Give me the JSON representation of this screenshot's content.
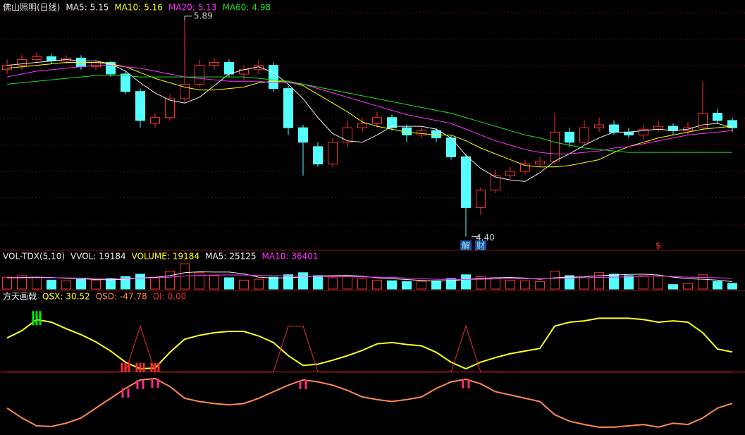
{
  "chart_data": [
    {
      "type": "candlestick",
      "title": "佛山照明(日线)",
      "open": [
        5.55,
        5.58,
        5.62,
        5.64,
        5.61,
        5.63,
        5.57,
        5.6,
        5.52,
        5.4,
        5.18,
        5.22,
        5.35,
        5.45,
        5.58,
        5.6,
        5.52,
        5.55,
        5.58,
        5.42,
        5.15,
        5.02,
        4.9,
        5.05,
        5.15,
        5.18,
        5.22,
        5.15,
        5.1,
        5.13,
        5.08,
        4.95,
        4.6,
        4.72,
        4.82,
        4.85,
        4.9,
        4.92,
        5.12,
        5.05,
        5.15,
        5.17,
        5.12,
        5.1,
        5.14,
        5.16,
        5.13,
        5.15,
        5.25,
        5.2
      ],
      "high": [
        5.62,
        5.65,
        5.67,
        5.66,
        5.65,
        5.65,
        5.62,
        5.61,
        5.54,
        5.42,
        5.25,
        5.38,
        5.89,
        5.62,
        5.63,
        5.62,
        5.58,
        5.62,
        5.6,
        5.44,
        5.17,
        5.05,
        5.08,
        5.2,
        5.22,
        5.26,
        5.24,
        5.17,
        5.16,
        5.15,
        5.1,
        4.97,
        4.74,
        4.86,
        4.88,
        4.93,
        4.95,
        5.25,
        5.15,
        5.2,
        5.22,
        5.2,
        5.15,
        5.17,
        5.2,
        5.18,
        5.19,
        5.47,
        5.28,
        5.22
      ],
      "low": [
        5.52,
        5.55,
        5.6,
        5.59,
        5.59,
        5.55,
        5.55,
        5.5,
        5.38,
        5.15,
        5.15,
        5.2,
        5.33,
        5.43,
        5.55,
        5.5,
        5.48,
        5.52,
        5.4,
        5.1,
        4.82,
        4.88,
        4.88,
        5.02,
        5.12,
        5.15,
        5.13,
        5.05,
        5.08,
        5.05,
        4.93,
        4.4,
        4.55,
        4.7,
        4.8,
        4.83,
        4.88,
        4.9,
        5.02,
        5.03,
        5.12,
        5.1,
        5.08,
        5.07,
        5.12,
        5.1,
        5.1,
        5.13,
        5.18,
        5.12
      ],
      "close": [
        5.58,
        5.62,
        5.64,
        5.61,
        5.63,
        5.57,
        5.6,
        5.52,
        5.4,
        5.2,
        5.22,
        5.35,
        5.45,
        5.58,
        5.6,
        5.52,
        5.55,
        5.58,
        5.42,
        5.15,
        5.05,
        4.9,
        5.05,
        5.15,
        5.18,
        5.22,
        5.15,
        5.1,
        5.13,
        5.08,
        4.95,
        4.6,
        4.72,
        4.82,
        4.85,
        4.9,
        4.92,
        5.12,
        5.05,
        5.15,
        5.17,
        5.12,
        5.1,
        5.14,
        5.16,
        5.13,
        5.15,
        5.25,
        5.2,
        5.15
      ],
      "up_color": "#ff3232",
      "down_color": "#54ffff",
      "series": [
        {
          "name": "MA5:",
          "color": "#f0f0f0",
          "values": [
            5.58,
            5.59,
            5.6,
            5.61,
            5.62,
            5.61,
            5.61,
            5.59,
            5.54,
            5.46,
            5.39,
            5.34,
            5.32,
            5.36,
            5.44,
            5.52,
            5.55,
            5.57,
            5.53,
            5.45,
            5.35,
            5.22,
            5.11,
            5.06,
            5.05,
            5.1,
            5.16,
            5.16,
            5.16,
            5.14,
            5.08,
            4.96,
            4.87,
            4.81,
            4.79,
            4.78,
            4.84,
            4.92,
            4.97,
            5.03,
            5.08,
            5.12,
            5.12,
            5.13,
            5.14,
            5.13,
            5.14,
            5.17,
            5.18,
            5.15
          ]
        },
        {
          "name": "MA10:",
          "color": "#ffff00",
          "values": [
            5.56,
            5.57,
            5.58,
            5.59,
            5.6,
            5.6,
            5.6,
            5.59,
            5.57,
            5.53,
            5.49,
            5.46,
            5.43,
            5.41,
            5.41,
            5.42,
            5.43,
            5.46,
            5.47,
            5.47,
            5.44,
            5.38,
            5.32,
            5.26,
            5.19,
            5.16,
            5.14,
            5.12,
            5.11,
            5.1,
            5.1,
            5.06,
            5.01,
            4.97,
            4.93,
            4.89,
            4.88,
            4.88,
            4.89,
            4.91,
            4.93,
            4.98,
            5.02,
            5.05,
            5.08,
            5.1,
            5.12,
            5.14,
            5.15,
            5.16
          ]
        },
        {
          "name": "MA20:",
          "color": "#ff33ff",
          "values": [
            5.5,
            5.52,
            5.54,
            5.55,
            5.56,
            5.57,
            5.58,
            5.58,
            5.57,
            5.56,
            5.54,
            5.52,
            5.5,
            5.49,
            5.48,
            5.47,
            5.47,
            5.47,
            5.46,
            5.46,
            5.45,
            5.42,
            5.39,
            5.36,
            5.33,
            5.3,
            5.27,
            5.24,
            5.22,
            5.2,
            5.18,
            5.14,
            5.1,
            5.06,
            5.03,
            5.0,
            4.98,
            4.97,
            4.97,
            4.98,
            4.99,
            5.01,
            5.02,
            5.04,
            5.06,
            5.08,
            5.1,
            5.11,
            5.12,
            5.13
          ]
        },
        {
          "name": "MA60:",
          "color": "#22dd22",
          "values": [
            5.45,
            5.46,
            5.47,
            5.48,
            5.49,
            5.5,
            5.51,
            5.51,
            5.51,
            5.5,
            5.5,
            5.5,
            5.5,
            5.5,
            5.5,
            5.5,
            5.5,
            5.49,
            5.48,
            5.47,
            5.45,
            5.43,
            5.41,
            5.39,
            5.37,
            5.35,
            5.33,
            5.31,
            5.29,
            5.27,
            5.25,
            5.22,
            5.19,
            5.16,
            5.13,
            5.1,
            5.08,
            5.05,
            5.03,
            5.01,
            5.0,
            4.99,
            4.98,
            4.98,
            4.98,
            4.98,
            4.98,
            4.98,
            4.98,
            4.98
          ]
        }
      ],
      "low_label": "4.40",
      "events": [
        null,
        null,
        null,
        null,
        null,
        null,
        null,
        null,
        null,
        null,
        null,
        null,
        null,
        null,
        null,
        null,
        null,
        null,
        null,
        null,
        null,
        null,
        null,
        null,
        null,
        null,
        null,
        null,
        null,
        null,
        null,
        {
          "label": "解",
          "color": "#9fe8ff",
          "box": "#1d4f9c"
        },
        {
          "label": "财",
          "color": "#9fe8ff",
          "box": "#1d4f9c"
        },
        null,
        null,
        null,
        null,
        null,
        null,
        null,
        null,
        null,
        null,
        null,
        {
          "label": "$",
          "color": "#ff3030"
        },
        null,
        null,
        null,
        null,
        null
      ],
      "ylim": [
        4.33,
        6.03
      ],
      "grid": true
    },
    {
      "type": "volume",
      "title": "VOL-TDX(5,10)",
      "extra_label": "VVOL:",
      "series": [
        {
          "name": "VOLUME:",
          "color": "#ffff00",
          "values": [
            40000,
            45000,
            38000,
            30000,
            28000,
            32000,
            30000,
            35000,
            42000,
            50000,
            40000,
            60000,
            85000,
            55000,
            45000,
            38000,
            30000,
            33000,
            40000,
            48000,
            55000,
            45000,
            38000,
            42000,
            35000,
            30000,
            28000,
            25000,
            26000,
            28000,
            35000,
            48000,
            42000,
            38000,
            30000,
            28000,
            25000,
            60000,
            45000,
            38000,
            55000,
            50000,
            45000,
            45000,
            43385,
            15000,
            18000,
            48000,
            25441,
            19184
          ]
        },
        {
          "name": "MA5:",
          "color": "#f0f0f0",
          "values": [
            38000,
            39000,
            40000,
            39000,
            36000,
            35000,
            32000,
            31000,
            33000,
            38000,
            39000,
            45000,
            55000,
            58000,
            57000,
            57000,
            51000,
            40000,
            37000,
            38000,
            41000,
            44000,
            45000,
            46000,
            43000,
            38000,
            35000,
            32000,
            29000,
            27000,
            28000,
            32000,
            36000,
            38000,
            39000,
            37000,
            33000,
            38000,
            40000,
            41000,
            45000,
            47000,
            49000,
            50000,
            47000,
            40000,
            35000,
            33000,
            30000,
            25125
          ]
        },
        {
          "name": "MA10:",
          "color": "#ff33ff",
          "values": [
            37000,
            37500,
            38000,
            38000,
            37500,
            37000,
            36500,
            36000,
            36500,
            37000,
            37500,
            40000,
            44000,
            46000,
            47000,
            47500,
            47000,
            46000,
            45000,
            44000,
            43000,
            42500,
            42000,
            42000,
            41000,
            40000,
            39000,
            37000,
            35000,
            33000,
            32000,
            32000,
            33000,
            34000,
            35000,
            35000,
            35000,
            36000,
            37000,
            38000,
            39000,
            40000,
            41000,
            43000,
            44000,
            42000,
            40000,
            39000,
            38000,
            36401
          ]
        }
      ],
      "ylim": [
        0,
        90000
      ]
    },
    {
      "type": "line",
      "title": "方天画戟",
      "series": [
        {
          "name": "QSX:",
          "color": "#ffff22",
          "values": [
            52,
            63,
            80,
            76,
            66,
            57,
            46,
            32,
            15,
            5,
            6,
            30,
            50,
            56,
            60,
            62,
            62,
            55,
            45,
            25,
            10,
            12,
            18,
            25,
            33,
            43,
            45,
            42,
            40,
            30,
            15,
            5,
            15,
            22,
            28,
            32,
            36,
            70,
            76,
            78,
            82,
            82,
            82,
            80,
            76,
            78,
            76,
            60,
            35,
            30.52
          ]
        },
        {
          "name": "QSD:",
          "color": "#ff8a50",
          "values": [
            -55,
            -70,
            -82,
            -83,
            -78,
            -70,
            -55,
            -40,
            -25,
            -12,
            -10,
            -22,
            -40,
            -45,
            -48,
            -50,
            -48,
            -40,
            -30,
            -20,
            -12,
            -15,
            -20,
            -28,
            -38,
            -42,
            -45,
            -42,
            -38,
            -25,
            -15,
            -11,
            -18,
            -30,
            -35,
            -40,
            -45,
            -65,
            -75,
            -80,
            -84,
            -84,
            -82,
            -80,
            -84,
            -78,
            -80,
            -70,
            -55,
            -47.78
          ]
        },
        {
          "name": "DI:",
          "color": "#e83030",
          "values": [
            0,
            0,
            0,
            0,
            0,
            0,
            0,
            0,
            0,
            70,
            0,
            0,
            0,
            0,
            0,
            0,
            0,
            0,
            0,
            70,
            70,
            0,
            0,
            0,
            0,
            0,
            0,
            0,
            0,
            0,
            0,
            70,
            0,
            0,
            0,
            0,
            0,
            0,
            0,
            0,
            0,
            0,
            0,
            0,
            0,
            0,
            0,
            0,
            0,
            0
          ],
          "value_labels": [
            null,
            null,
            null,
            null,
            null,
            null,
            null,
            null,
            null,
            null,
            null,
            null,
            null,
            null,
            null,
            null,
            null,
            null,
            null,
            null,
            null,
            null,
            null,
            null,
            null,
            null,
            null,
            null,
            null,
            null,
            null,
            null,
            null,
            null,
            null,
            null,
            null,
            null,
            null,
            null,
            null,
            null,
            null,
            null,
            null,
            null,
            null,
            null,
            null,
            "0.00"
          ]
        }
      ],
      "reference_line": 0,
      "reference_color": "#d02020",
      "qsx_signals": [
        null,
        null,
        "#00ee00",
        null,
        null,
        null,
        null,
        null,
        "#ff2a2a",
        "#ff2a2a",
        "#ff2a2a",
        null,
        null,
        null,
        null,
        null,
        null,
        null,
        null,
        null,
        null,
        null,
        null,
        null,
        null,
        null,
        null,
        null,
        null,
        null,
        null,
        null,
        null,
        null,
        null,
        null,
        null,
        null,
        null,
        null,
        null,
        null,
        null,
        null,
        null,
        null,
        null,
        null,
        null,
        null
      ],
      "qsd_signals": [
        null,
        null,
        null,
        null,
        null,
        null,
        null,
        null,
        "#ff2a8a",
        "#ff2a8a",
        "#ff2a8a",
        null,
        null,
        null,
        null,
        null,
        null,
        null,
        null,
        null,
        "#ff2a8a",
        null,
        null,
        null,
        null,
        null,
        null,
        null,
        null,
        null,
        null,
        "#ff2a8a",
        null,
        null,
        null,
        null,
        null,
        null,
        null,
        null,
        null,
        null,
        null,
        null,
        null,
        null,
        null,
        null,
        null,
        null
      ],
      "ylim": [
        -96,
        105
      ]
    }
  ]
}
